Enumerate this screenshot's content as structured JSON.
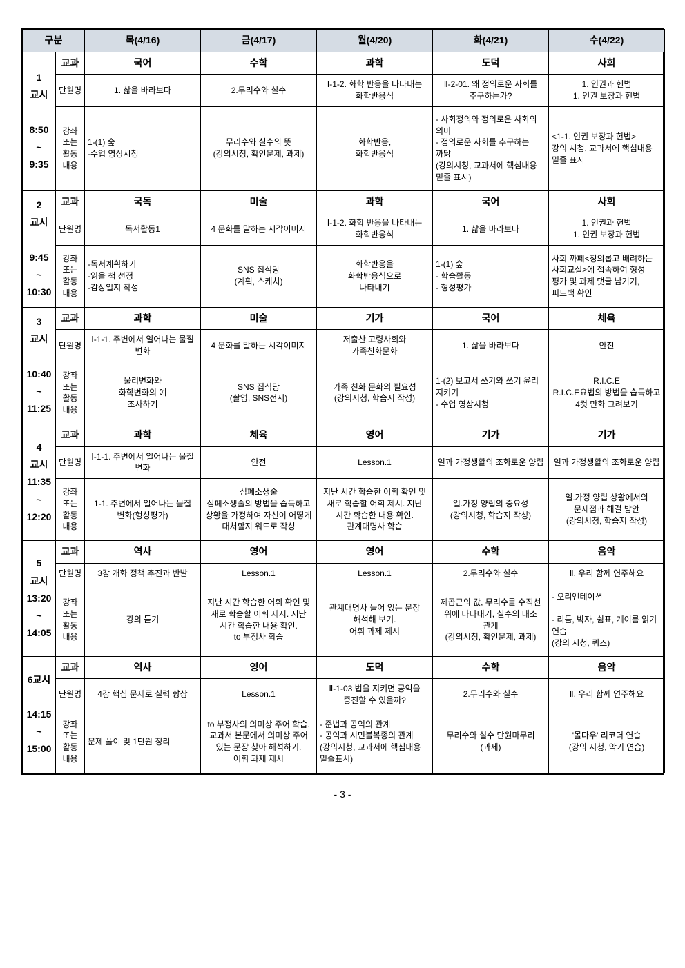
{
  "colors": {
    "header_bg": "#d5dce4",
    "border": "#000000",
    "bg": "#ffffff"
  },
  "header": {
    "gubun": "구분",
    "days": [
      "목(4/16)",
      "금(4/17)",
      "월(4/20)",
      "화(4/21)",
      "수(4/22)"
    ]
  },
  "row_labels": {
    "subject": "교과",
    "unit": "단원명",
    "content": "강좌 또는 활동 내용"
  },
  "periods": [
    {
      "label": "1\n교시\n\n8:50\n~\n9:35",
      "subjects": [
        "국어",
        "수학",
        "과학",
        "도덕",
        "사회"
      ],
      "units": [
        "1. 삶을 바라보다",
        "2.무리수와 실수",
        "Ⅰ-1-2. 화학 반응을 나타내는 화학반응식",
        "Ⅱ-2-01. 왜 정의로운 사회를 추구하는가?",
        "1. 인권과 헌법\n1. 인권 보장과 헌법"
      ],
      "contents": [
        "1-(1) 숲\n-수업 영상시청",
        "무리수와 실수의 뜻\n(강의시청, 확인문제, 과제)",
        "화학반응,\n화학반응식",
        "- 사회정의와 정의로운 사회의 의미\n- 정의로운 사회를 추구하는 까닭\n(강의시청, 교과서에 핵심내용 밑줄 표시)",
        "<1-1. 인권 보장과 헌법>\n강의 시청, 교과서에 핵심내용 밑줄 표시"
      ],
      "content_align": [
        "left",
        "center",
        "center",
        "left",
        "left"
      ]
    },
    {
      "label": "2\n교시\n\n9:45\n~\n10:30",
      "subjects": [
        "국독",
        "미술",
        "과학",
        "국어",
        "사회"
      ],
      "units": [
        "독서활동1",
        "4 문화를 말하는 시각이미지",
        "Ⅰ-1-2. 화학 반응을 나타내는 화학반응식",
        "1. 삶을 바라보다",
        "1. 인권과 헌법\n1. 인권 보장과 헌법"
      ],
      "contents": [
        "-독서계획하기\n-읽을 책 선정\n-감상일지 작성",
        "SNS 집식당\n(계획, 스케치)",
        "화학반응을\n화학반응식으로\n나타내기",
        "1-(1) 숲\n- 학습활동\n- 형성평가",
        "사회 까페<정의롭고 배려하는 사회교실>에 접속하여 형성 평가 및 과제 댓글 남기기, 피드백 확인"
      ],
      "content_align": [
        "left",
        "center",
        "center",
        "left",
        "left"
      ]
    },
    {
      "label": "3\n교시\n\n10:40\n~\n11:25",
      "subjects": [
        "과학",
        "미술",
        "기가",
        "국어",
        "체육"
      ],
      "units": [
        "Ⅰ-1-1. 주변에서 일어나는 물질 변화",
        "4 문화를 말하는 시각이미지",
        "저출산.고령사회와 가족친화문화",
        "1. 삶을 바라보다",
        "안전"
      ],
      "contents": [
        "물리변화와\n화학변화의 예\n조사하기",
        "SNS 집식당\n(촬영, SNS전시)",
        "가족 친화 문화의 필요성\n(강의시청, 학습지 작성)",
        "1-(2) 보고서 쓰기와 쓰기 윤리 지키기\n- 수업 영상시청",
        "R.I.C.E\nR.I.C.E요법의 방법을 습득하고 4컷 만화 그려보기"
      ],
      "content_align": [
        "center",
        "center",
        "center",
        "left",
        "center"
      ]
    },
    {
      "label": "4\n교시\n11:35\n~\n12:20",
      "subjects": [
        "과학",
        "체육",
        "영어",
        "기가",
        "기가"
      ],
      "units": [
        "Ⅰ-1-1. 주변에서 일어나는 물질 변화",
        "안전",
        "Lesson.1",
        "일과 가정생활의 조화로운 양립",
        "일과 가정생활의 조화로운 양립"
      ],
      "contents": [
        "1-1. 주변에서 일어나는 물질 변화(형성평가)",
        "심폐소생술\n심폐소생술의 방법을 습득하고 상황을 가정하여 자신이 어떻게 대처할지 워드로 작성",
        "지난 시간 학습한 어휘 확인 및 새로 학습할 어휘 제시. 지난 시간 학습한 내용 확인. 관계대명사 학습",
        "일.가정 양립의 중요성\n(강의시청, 학습지 작성)",
        "일.가정 양립 상황에서의 문제점과 해결 방안\n(강의시청, 학습지 작성)"
      ],
      "content_align": [
        "center",
        "center",
        "center",
        "center",
        "center"
      ]
    },
    {
      "label": "5\n교시\n13:20\n~\n14:05",
      "subjects": [
        "역사",
        "영어",
        "영어",
        "수학",
        "음악"
      ],
      "units": [
        "3강 개화 정책 추진과 반발",
        "Lesson.1",
        "Lesson.1",
        "2.무리수와 실수",
        "Ⅱ. 우리 함께 연주해요"
      ],
      "contents": [
        "강의 듣기",
        "지난 시간 학습한 어휘 확인 및 새로 학습할 어휘 제시. 지난 시간 학습한 내용 확인.\nto 부정사 학습",
        "관계대명사 들어 있는 문장 해석해 보기.\n어휘 과제 제시",
        "제곱근의 값, 무리수를 수직선 위에 나타내기, 실수의 대소 관계\n(강의시청, 확인문제, 과제)",
        "- 오리엔테이션\n\n- 리듬, 박자, 쉼표, 계이름 읽기 연습\n(강의 시청, 퀴즈)"
      ],
      "content_align": [
        "center",
        "center",
        "center",
        "center",
        "left"
      ]
    },
    {
      "label": "6교시\n\n14:15\n~\n15:00",
      "subjects": [
        "역사",
        "영어",
        "도덕",
        "수학",
        "음악"
      ],
      "units": [
        "4강 핵심 문제로 실력 향상",
        "Lesson.1",
        "Ⅱ-1-03 법을 지키면 공익을 증진할 수 있을까?",
        "2.무리수와 실수",
        "Ⅱ. 우리 함께 연주해요"
      ],
      "contents": [
        "문제 풀이 및 1단원 정리",
        "to 부정사의 의미상 주어 학습.\n교과서 본문에서 의미상 주어 있는 문장 찾아 해석하기.\n어휘 과제 제시",
        "- 준법과 공익의 관계\n- 공익과 시민불복종의 관계\n(강의시청, 교과서에 핵심내용 밑줄표시)",
        "무리수와 실수 단원마무리\n(과제)",
        "'몰다우' 리코더 연습\n(강의 시청, 악기 연습)"
      ],
      "content_align": [
        "left",
        "center",
        "left",
        "center",
        "center"
      ]
    }
  ],
  "page_number": "- 3 -"
}
